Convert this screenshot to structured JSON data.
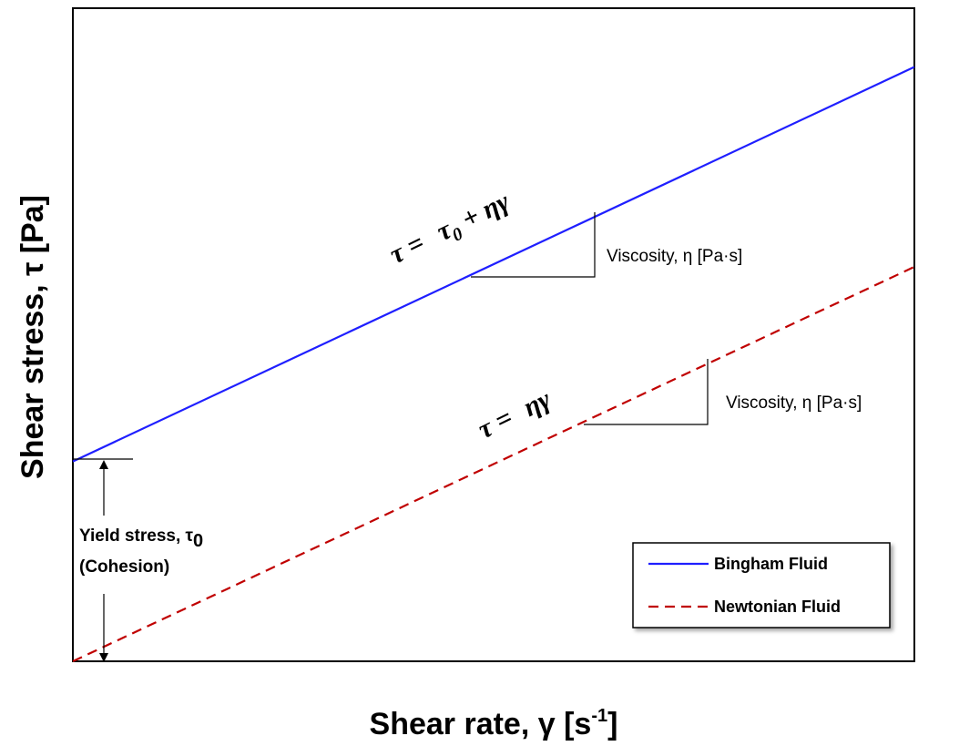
{
  "chart_data": {
    "type": "line",
    "xlabel": {
      "main": "Shear rate, γ [s",
      "sup": "-1",
      "tail": "]"
    },
    "ylabel": "Shear stress, τ [Pa]",
    "xlim": [
      0,
      1
    ],
    "ylim": [
      0,
      1
    ],
    "grid": false,
    "series": [
      {
        "name": "Bingham Fluid",
        "x": [
          0,
          1
        ],
        "y": [
          0.306,
          0.91
        ],
        "color": "#1f1fff",
        "style": "solid"
      },
      {
        "name": "Newtonian Fluid",
        "x": [
          0,
          1
        ],
        "y": [
          0,
          0.604
        ],
        "color": "#c00000",
        "style": "dashed"
      }
    ],
    "annotations": {
      "bingham_equation": {
        "lhs": "τ =",
        "t": "τ",
        "sub": "0",
        "rhs": " + ηγ"
      },
      "newtonian_equation": {
        "lhs": "τ =",
        "rhs": "ηγ"
      },
      "viscosity_label_1": "Viscosity, η [Pa·s]",
      "viscosity_label_2": "Viscosity, η [Pa·s]",
      "yield_stress_label": {
        "main": "Yield stress, τ",
        "sub": "0"
      },
      "cohesion_label": "(Cohesion)"
    },
    "legend": {
      "position": "bottom-right",
      "items": [
        "Bingham Fluid",
        "Newtonian Fluid"
      ]
    }
  }
}
